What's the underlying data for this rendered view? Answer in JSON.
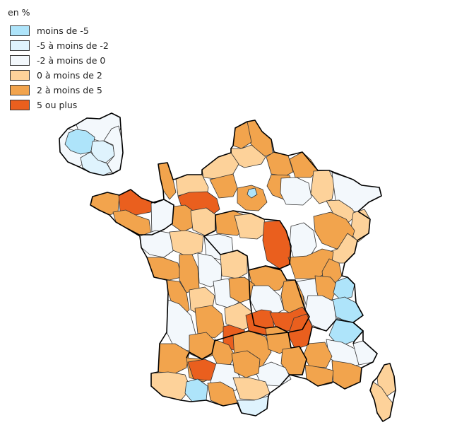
{
  "legend": {
    "title": "en %",
    "classes": [
      {
        "label": "moins de -5",
        "color": "#aee4fa"
      },
      {
        "label": "-5 à moins de -2",
        "color": "#dff3fd"
      },
      {
        "label": "-2 à moins de 0",
        "color": "#f3f8fc"
      },
      {
        "label": "0 à moins de 2",
        "color": "#fdd29a"
      },
      {
        "label": "2 à moins de 5",
        "color": "#f2a44d"
      },
      {
        "label": "5 ou plus",
        "color": "#ea5f1e"
      }
    ]
  },
  "map": {
    "subject": "France, départements de métropole, avec zoom sur l'Île-de-France",
    "class_by_area": {
      "paris-inner-ring": "moins de -5",
      "val-de-marne": "-5 à moins de -2",
      "essonne": "-5 à moins de -2",
      "val-d-oise": "-2 à moins de 0",
      "yvelines": "-2 à moins de 0",
      "seine-et-marne": "-2 à moins de 0",
      "ille-et-vilaine": "5 ou plus",
      "eure": "5 ou plus",
      "cher": "5 ou plus",
      "correze": "5 ou plus",
      "haute-loire": "5 ou plus",
      "ariege": "5 ou plus",
      "savoie": "moins de -5",
      "hautes-alpes": "moins de -5",
      "pyrenees-orientales": "moins de -5",
      "corse": "0 à moins de 2"
    }
  }
}
